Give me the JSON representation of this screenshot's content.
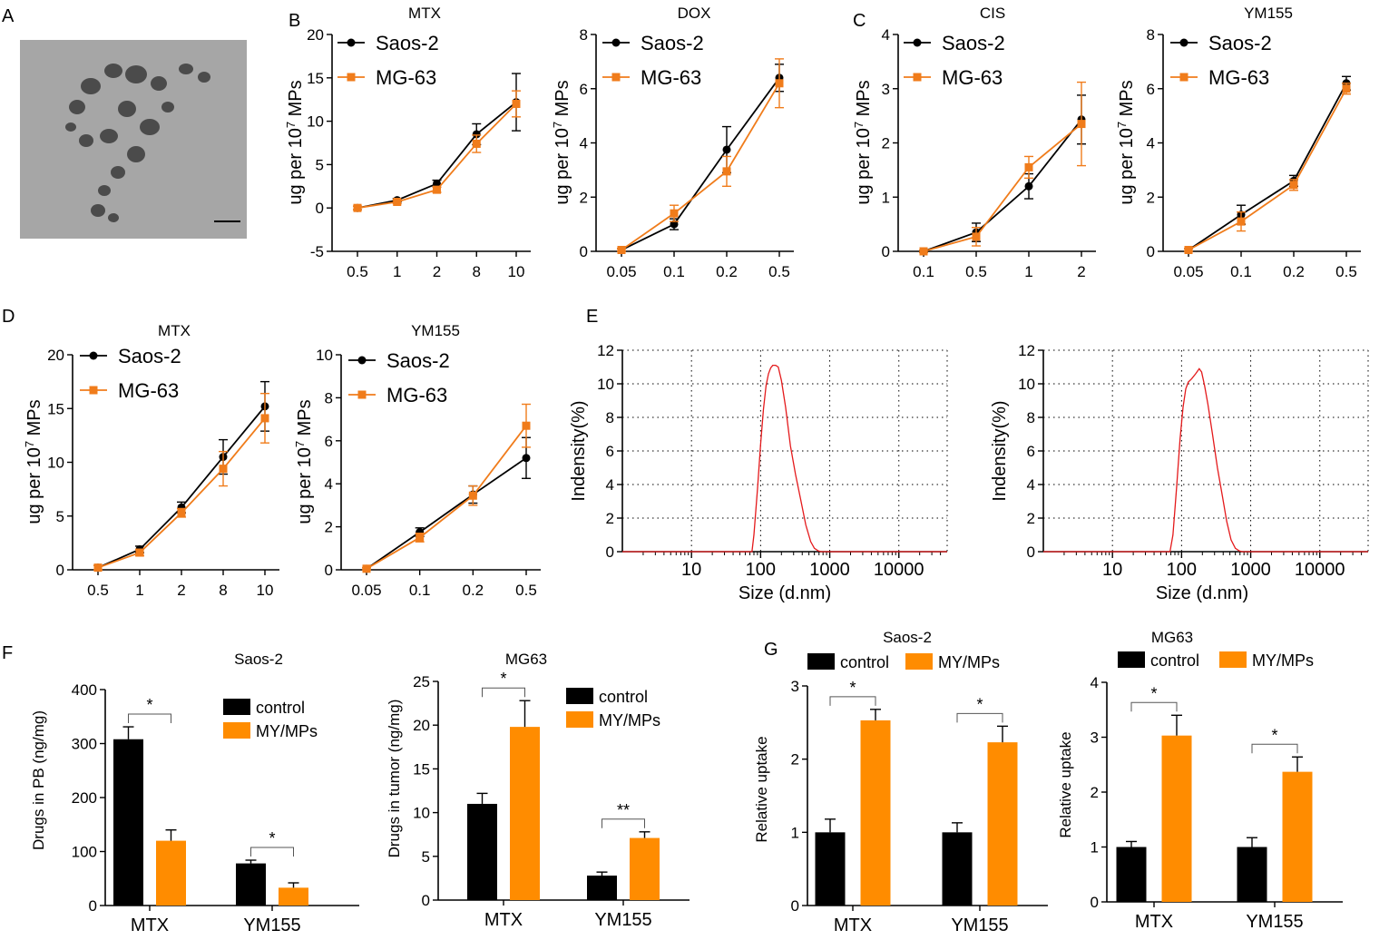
{
  "panel_labels": [
    "A",
    "B",
    "C",
    "D",
    "E",
    "F",
    "G"
  ],
  "colors": {
    "saos2": "#000000",
    "mg63": "#f07c1b",
    "dls": "#e41a1c",
    "bar_control": "#000000",
    "bar_treat": "#ff8c00"
  },
  "tem": {
    "scale_bar": "scale-bar"
  },
  "chart_data": [
    {
      "id": "B1",
      "type": "line",
      "title": "MTX",
      "ylabel": "ug per 10⁷ MPs",
      "categories": [
        "0.5",
        "1",
        "2",
        "8",
        "10"
      ],
      "ylim": [
        -5,
        20
      ],
      "yticks": [
        -5,
        0,
        5,
        10,
        15,
        20
      ],
      "series": [
        {
          "name": "Saos-2",
          "values": [
            0,
            0.9,
            2.8,
            8.5,
            12.2
          ],
          "err": [
            0.2,
            0.2,
            0.4,
            1.2,
            3.3
          ]
        },
        {
          "name": "MG-63",
          "values": [
            0,
            0.7,
            2.1,
            7.4,
            12.0
          ],
          "err": [
            0.2,
            0.2,
            0.3,
            1.0,
            1.5
          ]
        }
      ]
    },
    {
      "id": "B2",
      "type": "line",
      "title": "DOX",
      "ylabel": "ug per 10⁷ MPs",
      "categories": [
        "0.05",
        "0.1",
        "0.2",
        "0.5"
      ],
      "ylim": [
        0,
        8
      ],
      "yticks": [
        0,
        2,
        4,
        6,
        8
      ],
      "series": [
        {
          "name": "Saos-2",
          "values": [
            0.05,
            1.0,
            3.75,
            6.4
          ],
          "err": [
            0.05,
            0.2,
            0.85,
            0.5
          ]
        },
        {
          "name": "MG-63",
          "values": [
            0.05,
            1.4,
            2.95,
            6.2
          ],
          "err": [
            0.05,
            0.3,
            0.55,
            0.9
          ]
        }
      ]
    },
    {
      "id": "C1",
      "type": "line",
      "title": "CIS",
      "ylabel": "ug per 10⁷ MPs",
      "categories": [
        "0.1",
        "0.5",
        "1",
        "2"
      ],
      "ylim": [
        0,
        4
      ],
      "yticks": [
        0,
        1,
        2,
        3,
        4
      ],
      "series": [
        {
          "name": "Saos-2",
          "values": [
            0,
            0.35,
            1.2,
            2.43
          ],
          "err": [
            0.02,
            0.17,
            0.23,
            0.45
          ]
        },
        {
          "name": "MG-63",
          "values": [
            0,
            0.27,
            1.55,
            2.35
          ],
          "err": [
            0.02,
            0.17,
            0.2,
            0.77
          ]
        }
      ]
    },
    {
      "id": "C2",
      "type": "line",
      "title": "YM155",
      "ylabel": "ug per 10⁷ MPs",
      "categories": [
        "0.05",
        "0.1",
        "0.2",
        "0.5"
      ],
      "ylim": [
        0,
        8
      ],
      "yticks": [
        0,
        2,
        4,
        6,
        8
      ],
      "series": [
        {
          "name": "Saos-2",
          "values": [
            0.05,
            1.35,
            2.6,
            6.2
          ],
          "err": [
            0.05,
            0.35,
            0.2,
            0.25
          ]
        },
        {
          "name": "MG-63",
          "values": [
            0.05,
            1.1,
            2.45,
            6.0
          ],
          "err": [
            0.05,
            0.35,
            0.2,
            0.2
          ]
        }
      ]
    },
    {
      "id": "D1",
      "type": "line",
      "title": "MTX",
      "ylabel": "ug per 10⁷ MPs",
      "categories": [
        "0.5",
        "1",
        "2",
        "8",
        "10"
      ],
      "ylim": [
        0,
        20
      ],
      "yticks": [
        0,
        5,
        10,
        15,
        20
      ],
      "series": [
        {
          "name": "Saos-2",
          "values": [
            0.2,
            1.9,
            5.8,
            10.5,
            15.2
          ],
          "err": [
            0.2,
            0.3,
            0.5,
            1.6,
            2.3
          ]
        },
        {
          "name": "MG-63",
          "values": [
            0.2,
            1.6,
            5.3,
            9.4,
            14.1
          ],
          "err": [
            0.2,
            0.3,
            0.4,
            1.6,
            2.3
          ]
        }
      ]
    },
    {
      "id": "D2",
      "type": "line",
      "title": "YM155",
      "ylabel": "ug per 10⁷ MPs",
      "categories": [
        "0.05",
        "0.1",
        "0.2",
        "0.5"
      ],
      "ylim": [
        0,
        10
      ],
      "yticks": [
        0,
        2,
        4,
        6,
        8,
        10
      ],
      "series": [
        {
          "name": "Saos-2",
          "values": [
            0.05,
            1.75,
            3.5,
            5.2
          ],
          "err": [
            0.05,
            0.2,
            0.4,
            0.95
          ]
        },
        {
          "name": "MG-63",
          "values": [
            0.05,
            1.5,
            3.45,
            6.7
          ],
          "err": [
            0.05,
            0.2,
            0.45,
            1.0
          ]
        }
      ]
    },
    {
      "id": "E1",
      "type": "line",
      "xscale": "log",
      "xlabel": "Size (d.nm)",
      "ylabel": "Indensity(%)",
      "xticks": [
        "10",
        "100",
        "1000",
        "10000"
      ],
      "ylim": [
        0,
        12
      ],
      "yticks": [
        0,
        2,
        4,
        6,
        8,
        10,
        12
      ],
      "grid": "dotted",
      "x": [
        1,
        60,
        75,
        80,
        90,
        100,
        110,
        120,
        130,
        140,
        150,
        165,
        180,
        200,
        230,
        270,
        320,
        380,
        450,
        530,
        600,
        680,
        750,
        800,
        1000,
        5000,
        50000
      ],
      "values": [
        0,
        0,
        0,
        1.0,
        3.7,
        6.4,
        8.5,
        9.9,
        10.6,
        10.95,
        11.1,
        11.1,
        11.0,
        10.2,
        8.6,
        6.3,
        4.6,
        3.1,
        1.6,
        0.6,
        0.2,
        0.05,
        0,
        0,
        0,
        0,
        0
      ]
    },
    {
      "id": "E2",
      "type": "line",
      "xscale": "log",
      "xlabel": "Size (d.nm)",
      "ylabel": "Indensity(%)",
      "xticks": [
        "10",
        "100",
        "1000",
        "10000"
      ],
      "ylim": [
        0,
        12
      ],
      "yticks": [
        0,
        2,
        4,
        6,
        8,
        10,
        12
      ],
      "grid": "dotted",
      "x": [
        1,
        60,
        68,
        75,
        85,
        95,
        105,
        115,
        125,
        140,
        160,
        180,
        195,
        215,
        240,
        280,
        330,
        390,
        450,
        520,
        600,
        680,
        750,
        1000,
        5000,
        50000
      ],
      "values": [
        0,
        0,
        0,
        1.0,
        3.9,
        6.7,
        8.6,
        9.7,
        10.1,
        10.3,
        10.6,
        10.9,
        10.7,
        9.9,
        8.8,
        7.0,
        5.0,
        3.3,
        1.8,
        0.7,
        0.2,
        0.05,
        0,
        0,
        0,
        0
      ]
    },
    {
      "id": "F1",
      "type": "bar",
      "title": "Saos-2",
      "ylabel": "Drugs in PB (ng/mg)",
      "categories": [
        "MTX",
        "YM155"
      ],
      "ylim": [
        0,
        400
      ],
      "yticks": [
        0,
        100,
        200,
        300,
        400
      ],
      "series": [
        {
          "name": "control",
          "values": [
            308,
            78
          ],
          "err": [
            23,
            6
          ]
        },
        {
          "name": "MY/MPs",
          "values": [
            120,
            33
          ],
          "err": [
            20,
            9
          ]
        }
      ],
      "significance": [
        "*",
        "*"
      ]
    },
    {
      "id": "F2",
      "type": "bar",
      "title": "MG63",
      "ylabel": "Drugs in tumor (ng/mg)",
      "categories": [
        "MTX",
        "YM155"
      ],
      "ylim": [
        0,
        25
      ],
      "yticks": [
        0,
        5,
        10,
        15,
        20,
        25
      ],
      "series": [
        {
          "name": "control",
          "values": [
            11.0,
            2.8
          ],
          "err": [
            1.2,
            0.4
          ]
        },
        {
          "name": "MY/MPs",
          "values": [
            19.8,
            7.1
          ],
          "err": [
            3.0,
            0.7
          ]
        }
      ],
      "significance": [
        "*",
        "**"
      ]
    },
    {
      "id": "G1",
      "type": "bar",
      "title": "Saos-2",
      "ylabel": "Relative uptake",
      "categories": [
        "MTX",
        "YM155"
      ],
      "ylim": [
        0,
        3
      ],
      "yticks": [
        0,
        1,
        2,
        3
      ],
      "series": [
        {
          "name": "control",
          "values": [
            1.0,
            1.0
          ],
          "err": [
            0.18,
            0.13
          ]
        },
        {
          "name": "MY/MPs",
          "values": [
            2.53,
            2.23
          ],
          "err": [
            0.15,
            0.22
          ]
        }
      ],
      "significance": [
        "*",
        "*"
      ]
    },
    {
      "id": "G2",
      "type": "bar",
      "title": "MG63",
      "ylabel": "Relative uptake",
      "categories": [
        "MTX",
        "YM155"
      ],
      "ylim": [
        0,
        4
      ],
      "yticks": [
        0,
        1,
        2,
        3,
        4
      ],
      "series": [
        {
          "name": "control",
          "values": [
            1.0,
            1.0
          ],
          "err": [
            0.1,
            0.17
          ]
        },
        {
          "name": "MY/MPs",
          "values": [
            3.03,
            2.37
          ],
          "err": [
            0.37,
            0.27
          ]
        }
      ],
      "significance": [
        "*",
        "*"
      ]
    }
  ]
}
